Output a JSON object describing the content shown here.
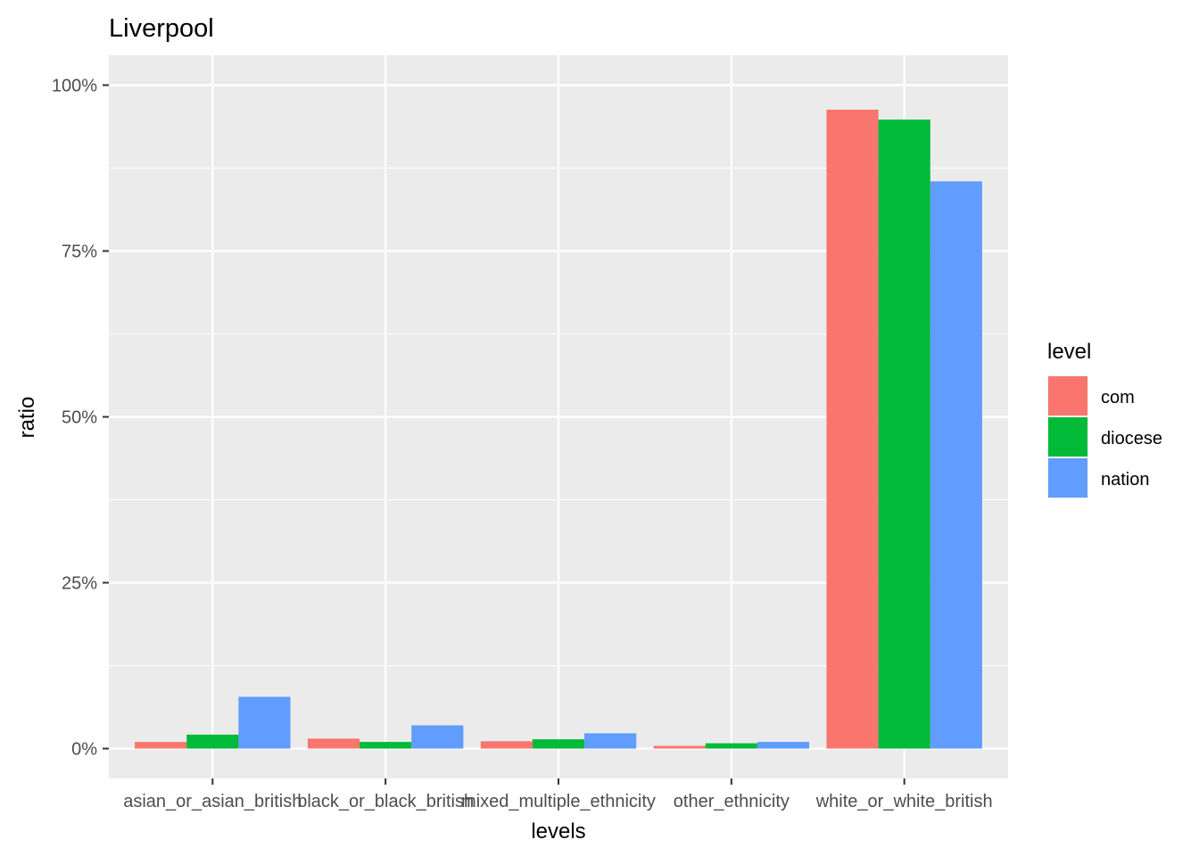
{
  "chart_data": {
    "type": "bar",
    "title": "Liverpool",
    "xlabel": "levels",
    "ylabel": "ratio",
    "categories": [
      "asian_or_asian_british",
      "black_or_black_british",
      "mixed_multiple_ethnicity",
      "other_ethnicity",
      "white_or_white_british"
    ],
    "series": [
      {
        "name": "com",
        "color": "#F8766D",
        "values": [
          0.01,
          0.015,
          0.011,
          0.004,
          0.963
        ]
      },
      {
        "name": "diocese",
        "color": "#00BA38",
        "values": [
          0.021,
          0.01,
          0.014,
          0.008,
          0.948
        ]
      },
      {
        "name": "nation",
        "color": "#619CFF",
        "values": [
          0.078,
          0.035,
          0.023,
          0.01,
          0.855
        ]
      }
    ],
    "ylim": [
      -0.045,
      1.045
    ],
    "yticks": [
      0,
      0.25,
      0.5,
      0.75,
      1.0
    ],
    "ytick_labels": [
      "0%",
      "25%",
      "50%",
      "75%",
      "100%"
    ],
    "legend": {
      "title": "level",
      "position": "right"
    },
    "grid": true,
    "panel_background": "#EBEBEB",
    "gridline_color": "#FFFFFF"
  }
}
